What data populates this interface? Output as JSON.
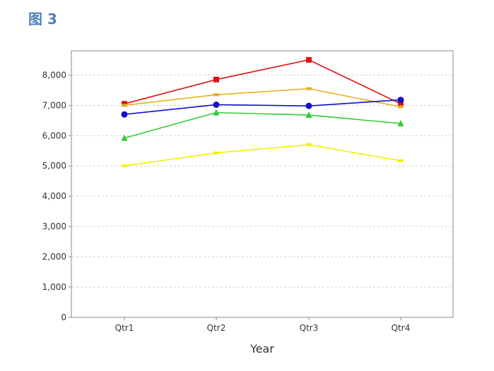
{
  "caption": "图 3",
  "chart_data": {
    "type": "line",
    "title": "",
    "xlabel": "Year",
    "ylabel": "",
    "categories": [
      "Qtr1",
      "Qtr2",
      "Qtr3",
      "Qtr4"
    ],
    "ylim": [
      0,
      8800
    ],
    "yticks": [
      0,
      1000,
      2000,
      3000,
      4000,
      5000,
      6000,
      7000,
      8000
    ],
    "ytick_labels": [
      "0",
      "1,000",
      "2,000",
      "3,000",
      "4,000",
      "5,000",
      "6,000",
      "7,000",
      "8,000"
    ],
    "grid": "horizontal-dashed",
    "legend": "none",
    "series": [
      {
        "color": "#dd1111",
        "marker": "square",
        "values": [
          7050,
          7850,
          8500,
          7050
        ]
      },
      {
        "color": "#e8b020",
        "marker": "dash",
        "values": [
          7000,
          7350,
          7550,
          6950
        ]
      },
      {
        "color": "#1010cc",
        "marker": "circle",
        "values": [
          6700,
          7020,
          6980,
          7180
        ]
      },
      {
        "color": "#33cc33",
        "marker": "triangle",
        "values": [
          5920,
          6760,
          6680,
          6400
        ]
      },
      {
        "color": "#f2f200",
        "marker": "dash",
        "values": [
          5000,
          5430,
          5700,
          5170
        ]
      }
    ]
  }
}
